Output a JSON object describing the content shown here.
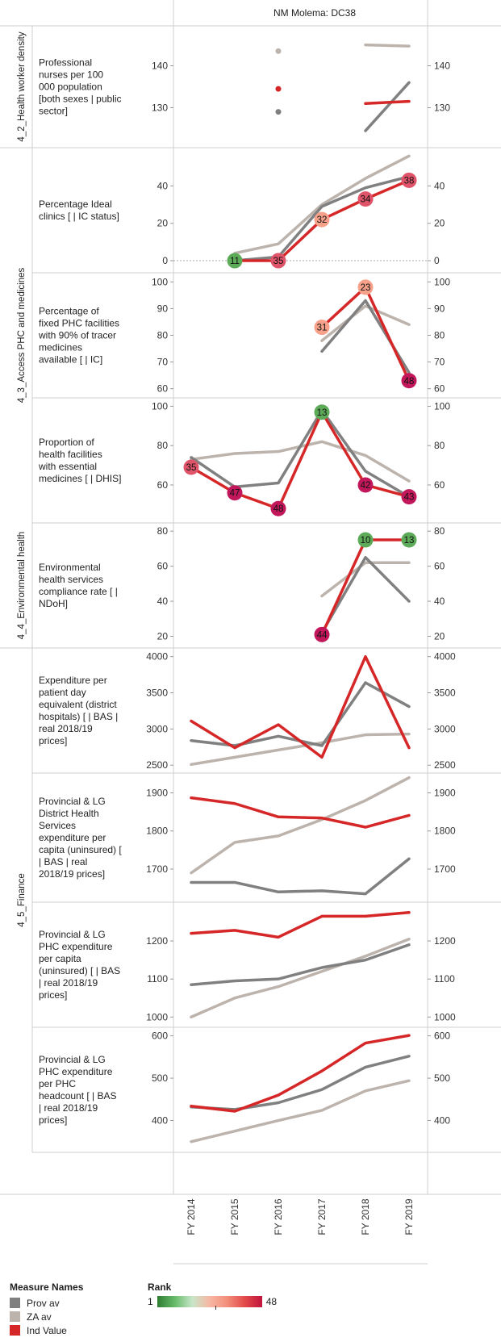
{
  "title": "NM Molema: DC38",
  "chart_data": {
    "type": "line",
    "title": "NM Molema: DC38",
    "x": [
      "FY 2014",
      "FY 2015",
      "FY 2016",
      "FY 2017",
      "FY 2018",
      "FY 2019"
    ],
    "groups": [
      {
        "label": "4_2_Health worker density",
        "rows": [
          0
        ]
      },
      {
        "label": "4_3_Access PHC and medicines",
        "rows": [
          1,
          2,
          3
        ]
      },
      {
        "label": "4_4_Environmental health",
        "rows": [
          4
        ]
      },
      {
        "label": "4_5_Finance",
        "rows": [
          5,
          6,
          7,
          8
        ]
      }
    ],
    "rows": [
      {
        "label": [
          "Professional",
          "nurses per 100",
          "000 population",
          "[both sexes | public",
          "sector]"
        ],
        "ylim": [
          122,
          148
        ],
        "ticks": [
          "130",
          "140"
        ],
        "series": [
          {
            "name": "Prov av",
            "values": [
              null,
              null,
              129,
              null,
              124.5,
              136
            ]
          },
          {
            "name": "ZA av",
            "values": [
              null,
              null,
              143.5,
              null,
              145,
              144.7
            ]
          },
          {
            "name": "Ind Value",
            "values": [
              null,
              null,
              134.5,
              null,
              131,
              131.5
            ]
          }
        ],
        "ranks": []
      },
      {
        "label": [
          "Percentage Ideal",
          "clinics [ | IC status]"
        ],
        "ylim": [
          -3,
          57
        ],
        "ticks": [
          "0",
          "20",
          "40"
        ],
        "zero_line": true,
        "series": [
          {
            "name": "Prov av",
            "values": [
              null,
              0,
              2,
              29,
              39,
              45
            ]
          },
          {
            "name": "ZA av",
            "values": [
              null,
              4,
              9,
              30,
              44,
              56
            ]
          },
          {
            "name": "Ind Value",
            "values": [
              null,
              0,
              0,
              22,
              33,
              43
            ]
          }
        ],
        "ranks": [
          {
            "x": 1,
            "rank": "11"
          },
          {
            "x": 2,
            "rank": "35"
          },
          {
            "x": 3,
            "rank": "32"
          },
          {
            "x": 4,
            "rank": "34"
          },
          {
            "x": 5,
            "rank": "38"
          }
        ]
      },
      {
        "label": [
          "Percentage of",
          "fixed PHC facilities",
          "with 90% of tracer",
          "medicines",
          "available [ | IC]"
        ],
        "ylim": [
          59,
          101
        ],
        "ticks": [
          "60",
          "70",
          "80",
          "90",
          "100"
        ],
        "series": [
          {
            "name": "Prov av",
            "values": [
              null,
              null,
              null,
              74,
              93,
              66
            ]
          },
          {
            "name": "ZA av",
            "values": [
              null,
              null,
              null,
              78,
              91,
              84
            ]
          },
          {
            "name": "Ind Value",
            "values": [
              null,
              null,
              null,
              83,
              98,
              63
            ]
          }
        ],
        "ranks": [
          {
            "x": 3,
            "rank": "31"
          },
          {
            "x": 4,
            "rank": "23"
          },
          {
            "x": 5,
            "rank": "48"
          }
        ]
      },
      {
        "label": [
          "Proportion of",
          "health facilities",
          "with essential",
          "medicines [ | DHIS]"
        ],
        "ylim": [
          44,
          101
        ],
        "ticks": [
          "60",
          "80",
          "100"
        ],
        "series": [
          {
            "name": "Prov av",
            "values": [
              74,
              59,
              61,
              98,
              67,
              54
            ]
          },
          {
            "name": "ZA av",
            "values": [
              73,
              76,
              77,
              82,
              75,
              62
            ]
          },
          {
            "name": "Ind Value",
            "values": [
              69,
              56,
              48,
              97,
              60,
              54
            ]
          }
        ],
        "ranks": [
          {
            "x": 0,
            "rank": "35"
          },
          {
            "x": 1,
            "rank": "47"
          },
          {
            "x": 2,
            "rank": "48"
          },
          {
            "x": 3,
            "rank": "13"
          },
          {
            "x": 4,
            "rank": "42"
          },
          {
            "x": 5,
            "rank": "43"
          }
        ]
      },
      {
        "label": [
          "Environmental",
          "health services",
          "compliance rate [ |",
          "NDoH]"
        ],
        "ylim": [
          17,
          81
        ],
        "ticks": [
          "20",
          "40",
          "60",
          "80"
        ],
        "series": [
          {
            "name": "Prov av",
            "values": [
              null,
              null,
              null,
              22,
              65,
              40
            ]
          },
          {
            "name": "ZA av",
            "values": [
              null,
              null,
              null,
              43,
              62,
              62
            ]
          },
          {
            "name": "Ind Value",
            "values": [
              null,
              null,
              null,
              21,
              75,
              75
            ]
          }
        ],
        "ranks": [
          {
            "x": 3,
            "rank": "44"
          },
          {
            "x": 4,
            "rank": "10"
          },
          {
            "x": 5,
            "rank": "13"
          }
        ]
      },
      {
        "label": [
          "Expenditure per",
          "patient day",
          "equivalent (district",
          "hospitals) [ | BAS |",
          "real 2018/19",
          "prices]"
        ],
        "ylim": [
          2480,
          4030
        ],
        "ticks": [
          "2500",
          "3000",
          "3500",
          "4000"
        ],
        "series": [
          {
            "name": "Prov av",
            "values": [
              2840,
              2770,
              2900,
              2770,
              3640,
              3310
            ]
          },
          {
            "name": "ZA av",
            "values": [
              2510,
              2610,
              2710,
              2810,
              2920,
              2930
            ]
          },
          {
            "name": "Ind Value",
            "values": [
              3110,
              2740,
              3060,
              2610,
              4000,
              2740
            ]
          }
        ],
        "ranks": []
      },
      {
        "label": [
          "Provincial & LG",
          "District Health",
          "Services",
          "expenditure per",
          "capita (uninsured) [",
          "| BAS | real",
          "2018/19 prices]"
        ],
        "ylim": [
          1630,
          1935
        ],
        "ticks": [
          "1700",
          "1800",
          "1900"
        ],
        "series": [
          {
            "name": "Prov av",
            "values": [
              1665,
              1665,
              1640,
              1643,
              1635,
              1727
            ]
          },
          {
            "name": "ZA av",
            "values": [
              1690,
              1770,
              1787,
              1830,
              1880,
              1940
            ]
          },
          {
            "name": "Ind Value",
            "values": [
              1887,
              1872,
              1837,
              1834,
              1810,
              1841
            ]
          }
        ],
        "ranks": []
      },
      {
        "label": [
          "Provincial & LG",
          "PHC expenditure",
          "per capita",
          "(uninsured) [ | BAS",
          "| real 2018/19",
          "prices]"
        ],
        "ylim": [
          990,
          1285
        ],
        "ticks": [
          "1000",
          "1100",
          "1200"
        ],
        "series": [
          {
            "name": "Prov av",
            "values": [
              1085,
              1095,
              1100,
              1130,
              1150,
              1190
            ]
          },
          {
            "name": "ZA av",
            "values": [
              1000,
              1050,
              1080,
              1120,
              1160,
              1205
            ]
          },
          {
            "name": "Ind Value",
            "values": [
              1220,
              1228,
              1210,
              1265,
              1265,
              1275
            ]
          }
        ],
        "ranks": []
      },
      {
        "label": [
          "Provincial & LG",
          "PHC expenditure",
          "per PHC",
          "headcount [ | BAS",
          "| real 2018/19",
          "prices]"
        ],
        "ylim": [
          340,
          605
        ],
        "ticks": [
          "400",
          "500",
          "600"
        ],
        "series": [
          {
            "name": "Prov av",
            "values": [
              432,
              426,
              442,
              473,
              526,
              552
            ]
          },
          {
            "name": "ZA av",
            "values": [
              350,
              375,
              400,
              424,
              470,
              494
            ]
          },
          {
            "name": "Ind Value",
            "values": [
              434,
              422,
              460,
              517,
              583,
              601
            ]
          }
        ],
        "ranks": []
      }
    ]
  },
  "legend": {
    "measure_title": "Measure Names",
    "items": [
      {
        "name": "Prov av",
        "color": "#808080"
      },
      {
        "name": "ZA av",
        "color": "#bdb3ad"
      },
      {
        "name": "Ind Value",
        "color": "#d62728"
      }
    ],
    "rank_title": "Rank",
    "rank_min": "1",
    "rank_max": "48"
  },
  "colors": {
    "Prov av": "#808080",
    "ZA av": "#bdb3ad",
    "Ind Value": "#d62728"
  }
}
